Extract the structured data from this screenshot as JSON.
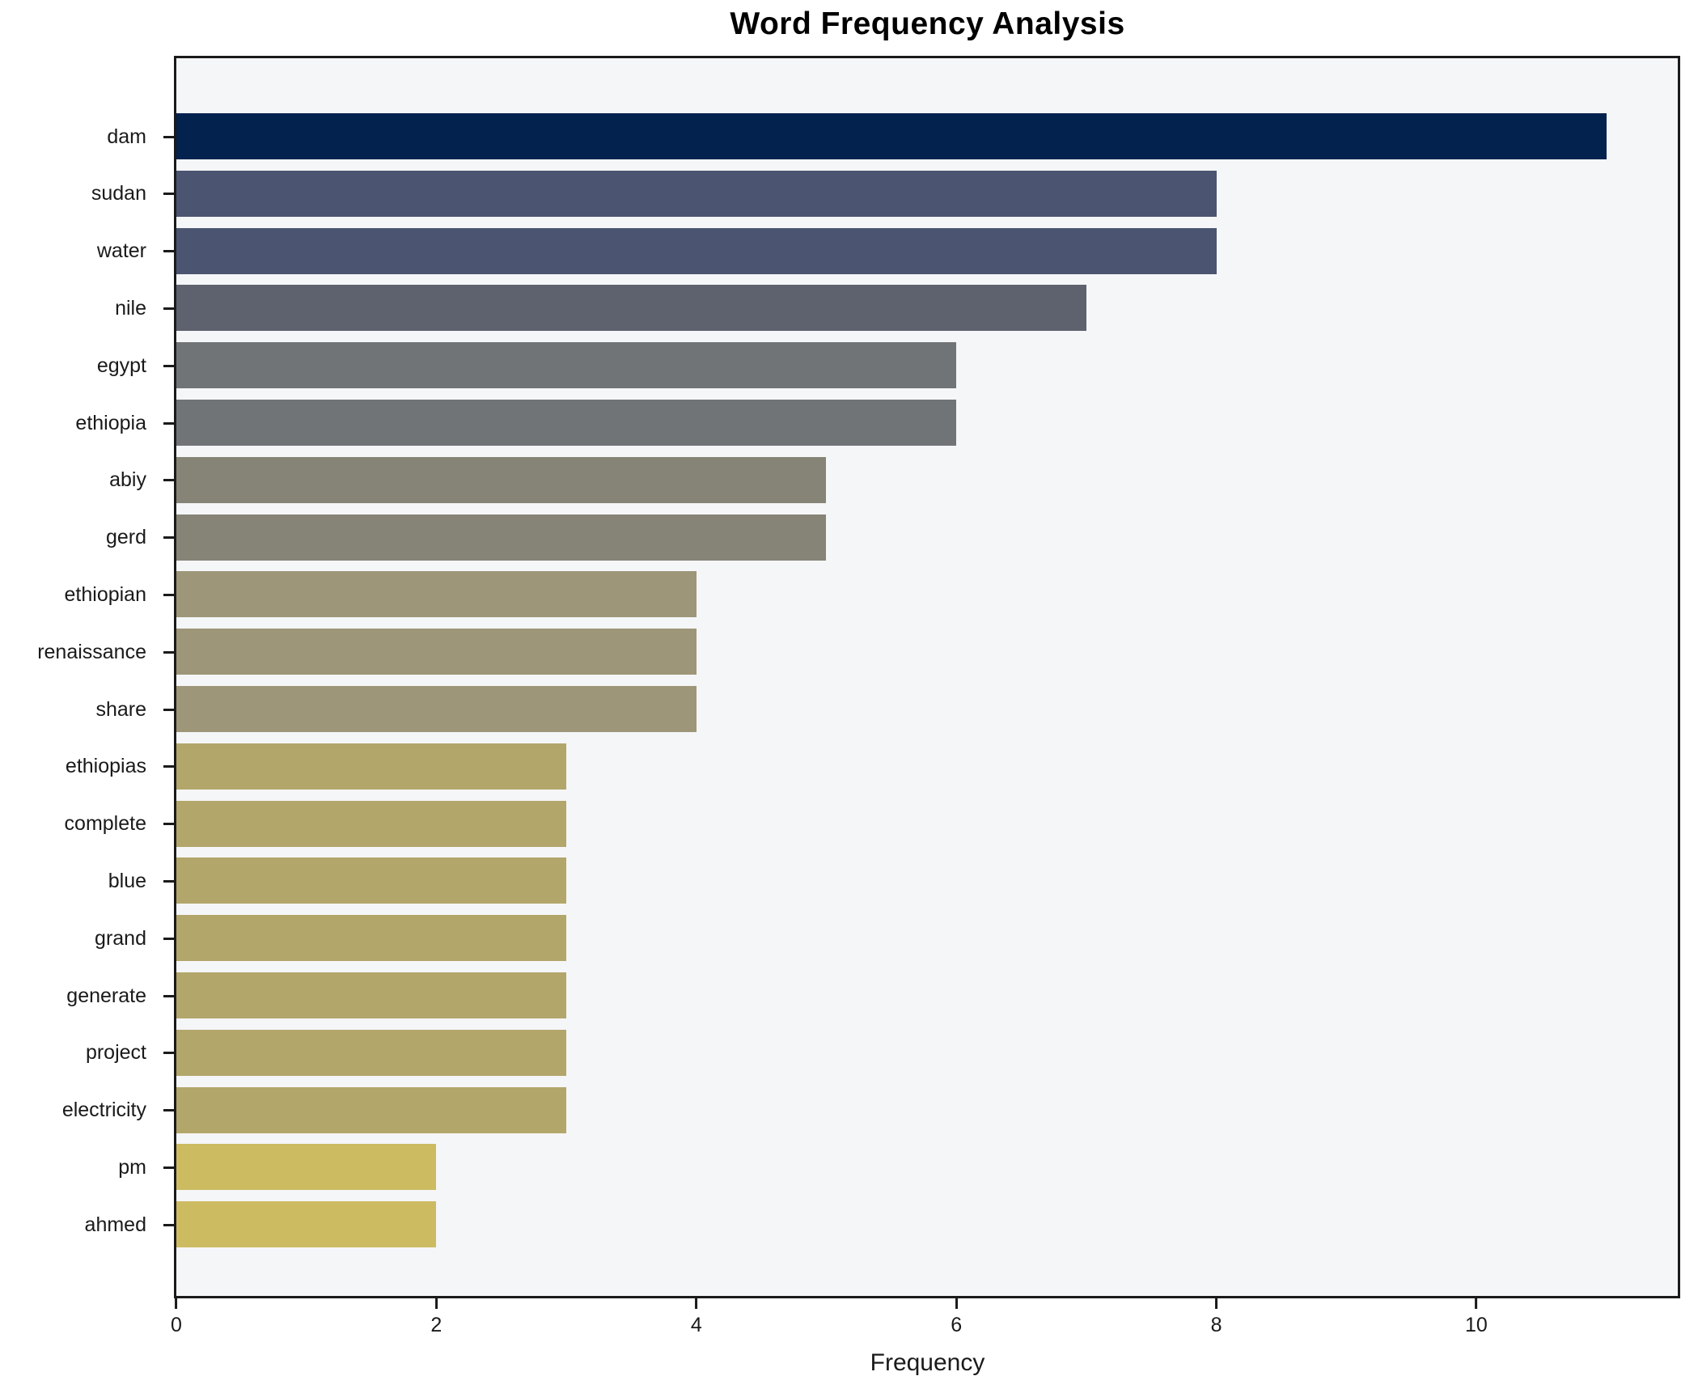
{
  "chart_data": {
    "type": "bar",
    "orientation": "horizontal",
    "title": "Word Frequency Analysis",
    "xlabel": "Frequency",
    "ylabel": "",
    "categories": [
      "dam",
      "sudan",
      "water",
      "nile",
      "egypt",
      "ethiopia",
      "abiy",
      "gerd",
      "ethiopian",
      "renaissance",
      "share",
      "ethiopias",
      "complete",
      "blue",
      "grand",
      "generate",
      "project",
      "electricity",
      "pm",
      "ahmed"
    ],
    "values": [
      11,
      8,
      8,
      7,
      6,
      6,
      5,
      5,
      4,
      4,
      4,
      3,
      3,
      3,
      3,
      3,
      3,
      3,
      2,
      2
    ],
    "bar_colors": [
      "#04224e",
      "#4b5571",
      "#4b5571",
      "#5e626f",
      "#717477",
      "#717477",
      "#868476",
      "#868476",
      "#9d9678",
      "#9d9678",
      "#9d9678",
      "#b3a66b",
      "#b3a66b",
      "#b3a66b",
      "#b3a66b",
      "#b3a66b",
      "#b3a66b",
      "#b3a66b",
      "#cdbb62",
      "#cdbb62"
    ],
    "xlim": [
      0,
      11.55
    ],
    "xticks": [
      0,
      2,
      4,
      6,
      8,
      10
    ],
    "grid": false,
    "legend": null,
    "plot_background": "#f5f6f8",
    "spine_color": "#1a1a1a",
    "figure_background": "#ffffff"
  }
}
